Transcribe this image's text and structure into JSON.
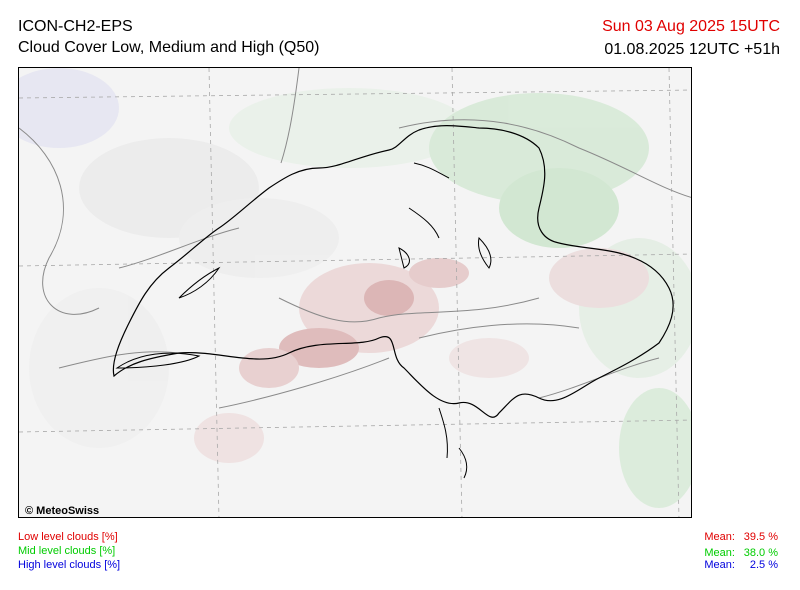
{
  "header": {
    "model": "ICON-CH2-EPS",
    "product": "Cloud Cover Low, Medium and High (Q50)",
    "valid_time": "Sun 03 Aug 2025 15UTC",
    "run_time": "01.08.2025 12UTC +51h"
  },
  "map": {
    "copyright": "© MeteoSwiss",
    "colors": {
      "low": "#e00000",
      "mid": "#00cc00",
      "high": "#0000dd"
    }
  },
  "legend": {
    "low": "Low level clouds [%]",
    "mid": "Mid level clouds [%]",
    "high": "High level clouds [%]"
  },
  "means": {
    "label": "Mean:",
    "low": "39.5 %",
    "mid": "38.0 %",
    "high": "2.5 %"
  }
}
